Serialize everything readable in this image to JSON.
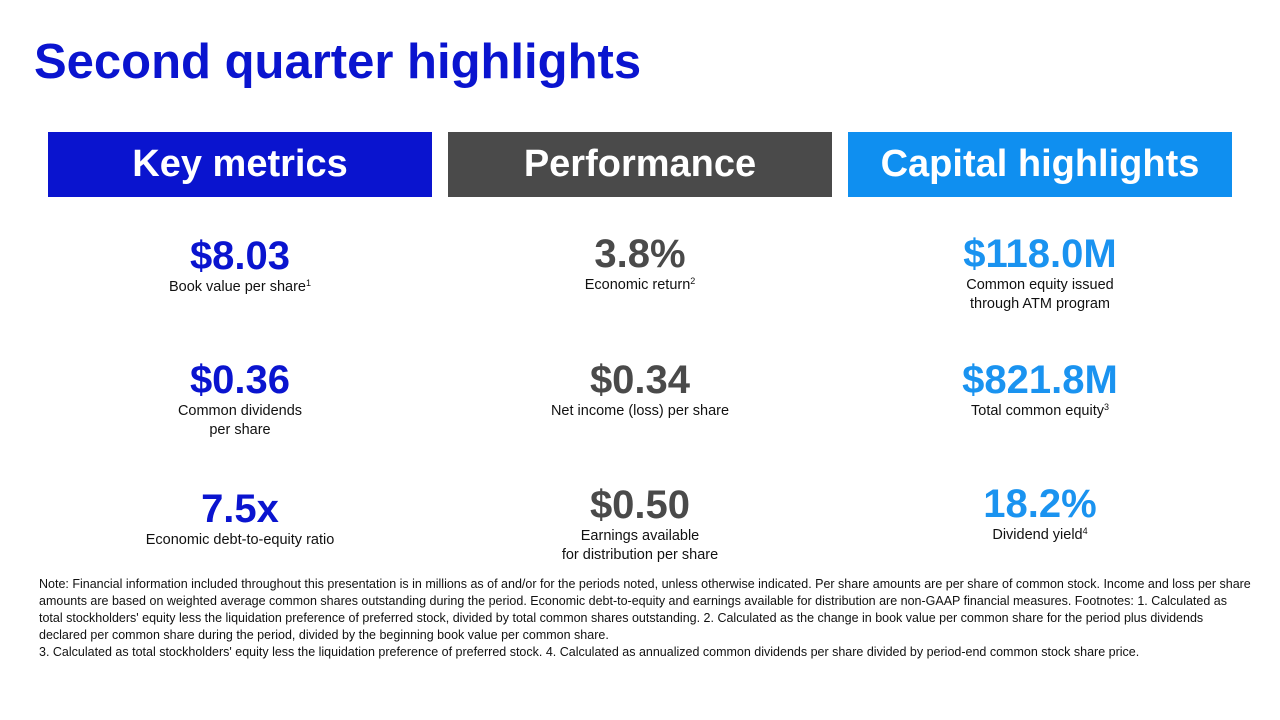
{
  "title": "Second quarter highlights",
  "colors": {
    "key_metrics": "#0a14cf",
    "performance": "#4a4a4a",
    "capital": "#0f8ff0"
  },
  "columns": [
    {
      "header": "Key metrics",
      "metrics": [
        {
          "value": "$8.03",
          "label": "Book value per share",
          "footnote": "1"
        },
        {
          "value": "$0.36",
          "label_line1": "Common dividends",
          "label_line2": "per share"
        },
        {
          "value": "7.5x",
          "label": "Economic debt-to-equity ratio"
        }
      ]
    },
    {
      "header": "Performance",
      "metrics": [
        {
          "value": "3.8%",
          "label": "Economic return",
          "footnote": "2"
        },
        {
          "value": "$0.34",
          "label": "Net income (loss) per share"
        },
        {
          "value": "$0.50",
          "label_line1": "Earnings available",
          "label_line2": "for distribution per share"
        }
      ]
    },
    {
      "header": "Capital highlights",
      "metrics": [
        {
          "value": "$118.0M",
          "label_line1": "Common equity issued",
          "label_line2": "through ATM program"
        },
        {
          "value": "$821.8M",
          "label": "Total common equity",
          "footnote": "3"
        },
        {
          "value": "18.2%",
          "label": "Dividend yield",
          "footnote": "4"
        }
      ]
    }
  ],
  "note": "Note: Financial information included throughout this presentation is in millions as of and/or for the periods noted, unless otherwise indicated. Per share amounts are per share of common stock. Income and loss per share amounts are based on weighted average common shares outstanding during the period. Economic debt-to-equity and earnings available for distribution are non-GAAP financial measures.  Footnotes:  1. Calculated as total stockholders' equity less the liquidation preference of preferred stock, divided by total common shares outstanding.  2. Calculated as the change in book value per common share for the period plus dividends declared per common share during the period, divided by the beginning book value per common share.",
  "note_line2": "3. Calculated as total stockholders' equity less the liquidation preference of preferred stock. 4. Calculated as annualized common dividends per share divided by period-end common stock share price."
}
